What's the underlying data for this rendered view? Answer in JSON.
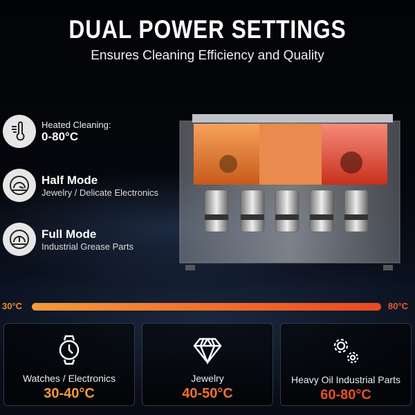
{
  "header": {
    "title": "DUAL POWER SETTINGS",
    "subtitle": "Ensures Cleaning Efficiency and Quality"
  },
  "features": [
    {
      "icon": "thermometer-icon",
      "label": "Heated Cleaning:",
      "value": "0-80°C"
    },
    {
      "icon": "gauge-half-icon",
      "title": "Half Mode",
      "desc": "Jewelry / Delicate Electronics"
    },
    {
      "icon": "gauge-full-icon",
      "title": "Full Mode",
      "desc": "Industrial Grease Parts"
    }
  ],
  "temperature_bar": {
    "min_label": "30°C",
    "max_label": "80°C",
    "colors": [
      "#f59a3a",
      "#e84a24"
    ]
  },
  "cards": [
    {
      "icon": "watch-icon",
      "name": "Watches / Electronics",
      "range": "30-40°C",
      "color": "#f39a3c"
    },
    {
      "icon": "diamond-icon",
      "name": "Jewelry",
      "range": "40-50°C",
      "color": "#f0722e"
    },
    {
      "icon": "gears-icon",
      "name": "Heavy Oil Industrial Parts",
      "range": "60-80°C",
      "color": "#e8502a"
    }
  ]
}
